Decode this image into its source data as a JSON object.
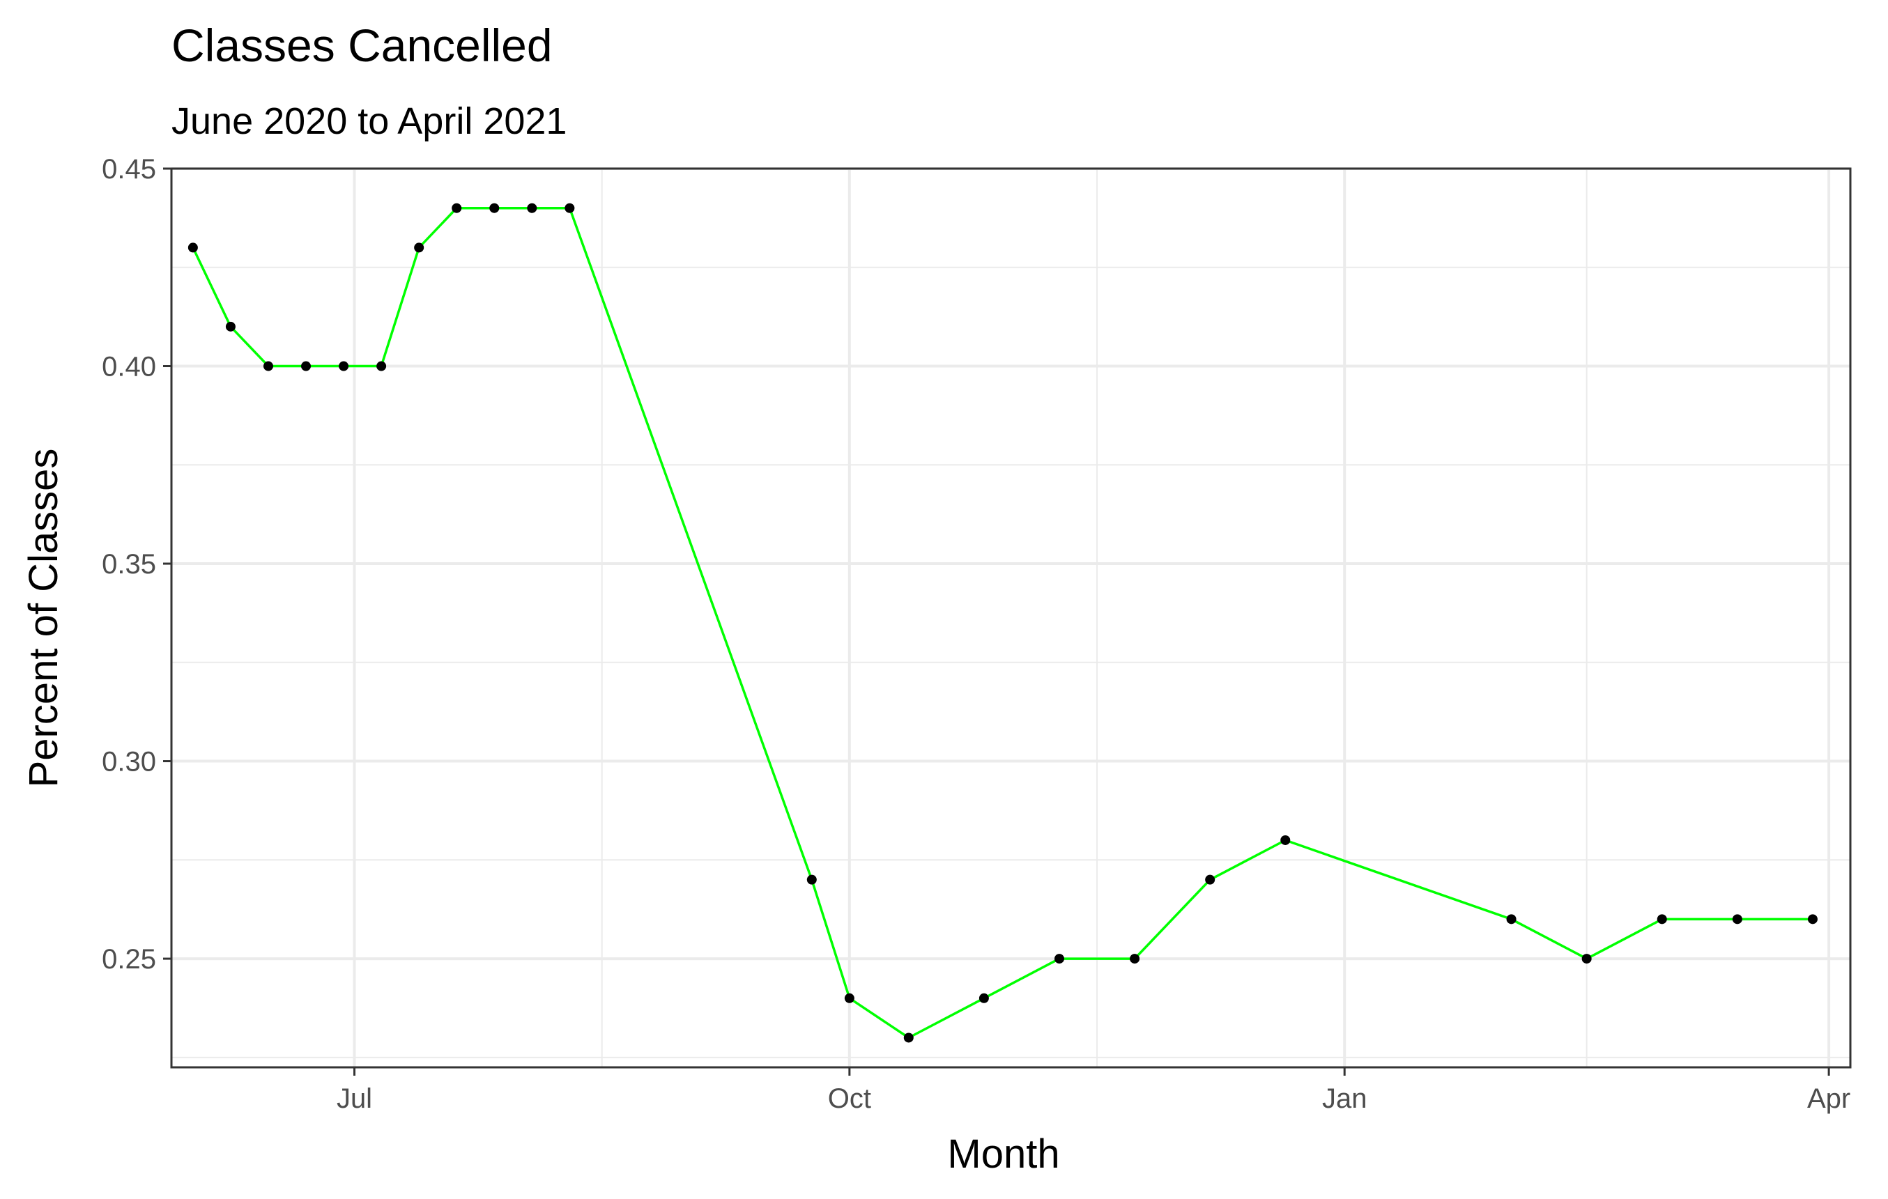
{
  "chart_data": {
    "type": "line",
    "title": "Classes Cancelled",
    "subtitle": "June 2020 to April 2021",
    "xlabel": "Month",
    "ylabel": "Percent of Classes",
    "ylim": [
      0.2225,
      0.45
    ],
    "xlim": [
      "2020-05-28",
      "2021-04-05"
    ],
    "y_ticks": [
      0.25,
      0.3,
      0.35,
      0.4,
      0.45
    ],
    "y_tick_labels": [
      "0.25",
      "0.30",
      "0.35",
      "0.40",
      "0.45"
    ],
    "x_ticks": [
      "2020-07-01",
      "2020-10-01",
      "2021-01-01",
      "2021-04-01"
    ],
    "x_tick_labels": [
      "Jul",
      "Oct",
      "Jan",
      "Apr"
    ],
    "grid": true,
    "line_color": "#00ff00",
    "point_color": "#000000",
    "series": [
      {
        "x": [
          "2020-06-01",
          "2020-06-08",
          "2020-06-15",
          "2020-06-22",
          "2020-06-29",
          "2020-07-06",
          "2020-07-13",
          "2020-07-20",
          "2020-07-27",
          "2020-08-03",
          "2020-08-10",
          "2020-09-24",
          "2020-10-01",
          "2020-10-12",
          "2020-10-26",
          "2020-11-09",
          "2020-11-23",
          "2020-12-07",
          "2020-12-21",
          "2021-02-01",
          "2021-02-15",
          "2021-03-01",
          "2021-03-15",
          "2021-03-29"
        ],
        "values": [
          0.43,
          0.41,
          0.4,
          0.4,
          0.4,
          0.4,
          0.43,
          0.44,
          0.44,
          0.44,
          0.44,
          0.27,
          0.24,
          0.23,
          0.24,
          0.25,
          0.25,
          0.27,
          0.28,
          0.26,
          0.25,
          0.26,
          0.26,
          0.26
        ]
      }
    ]
  }
}
